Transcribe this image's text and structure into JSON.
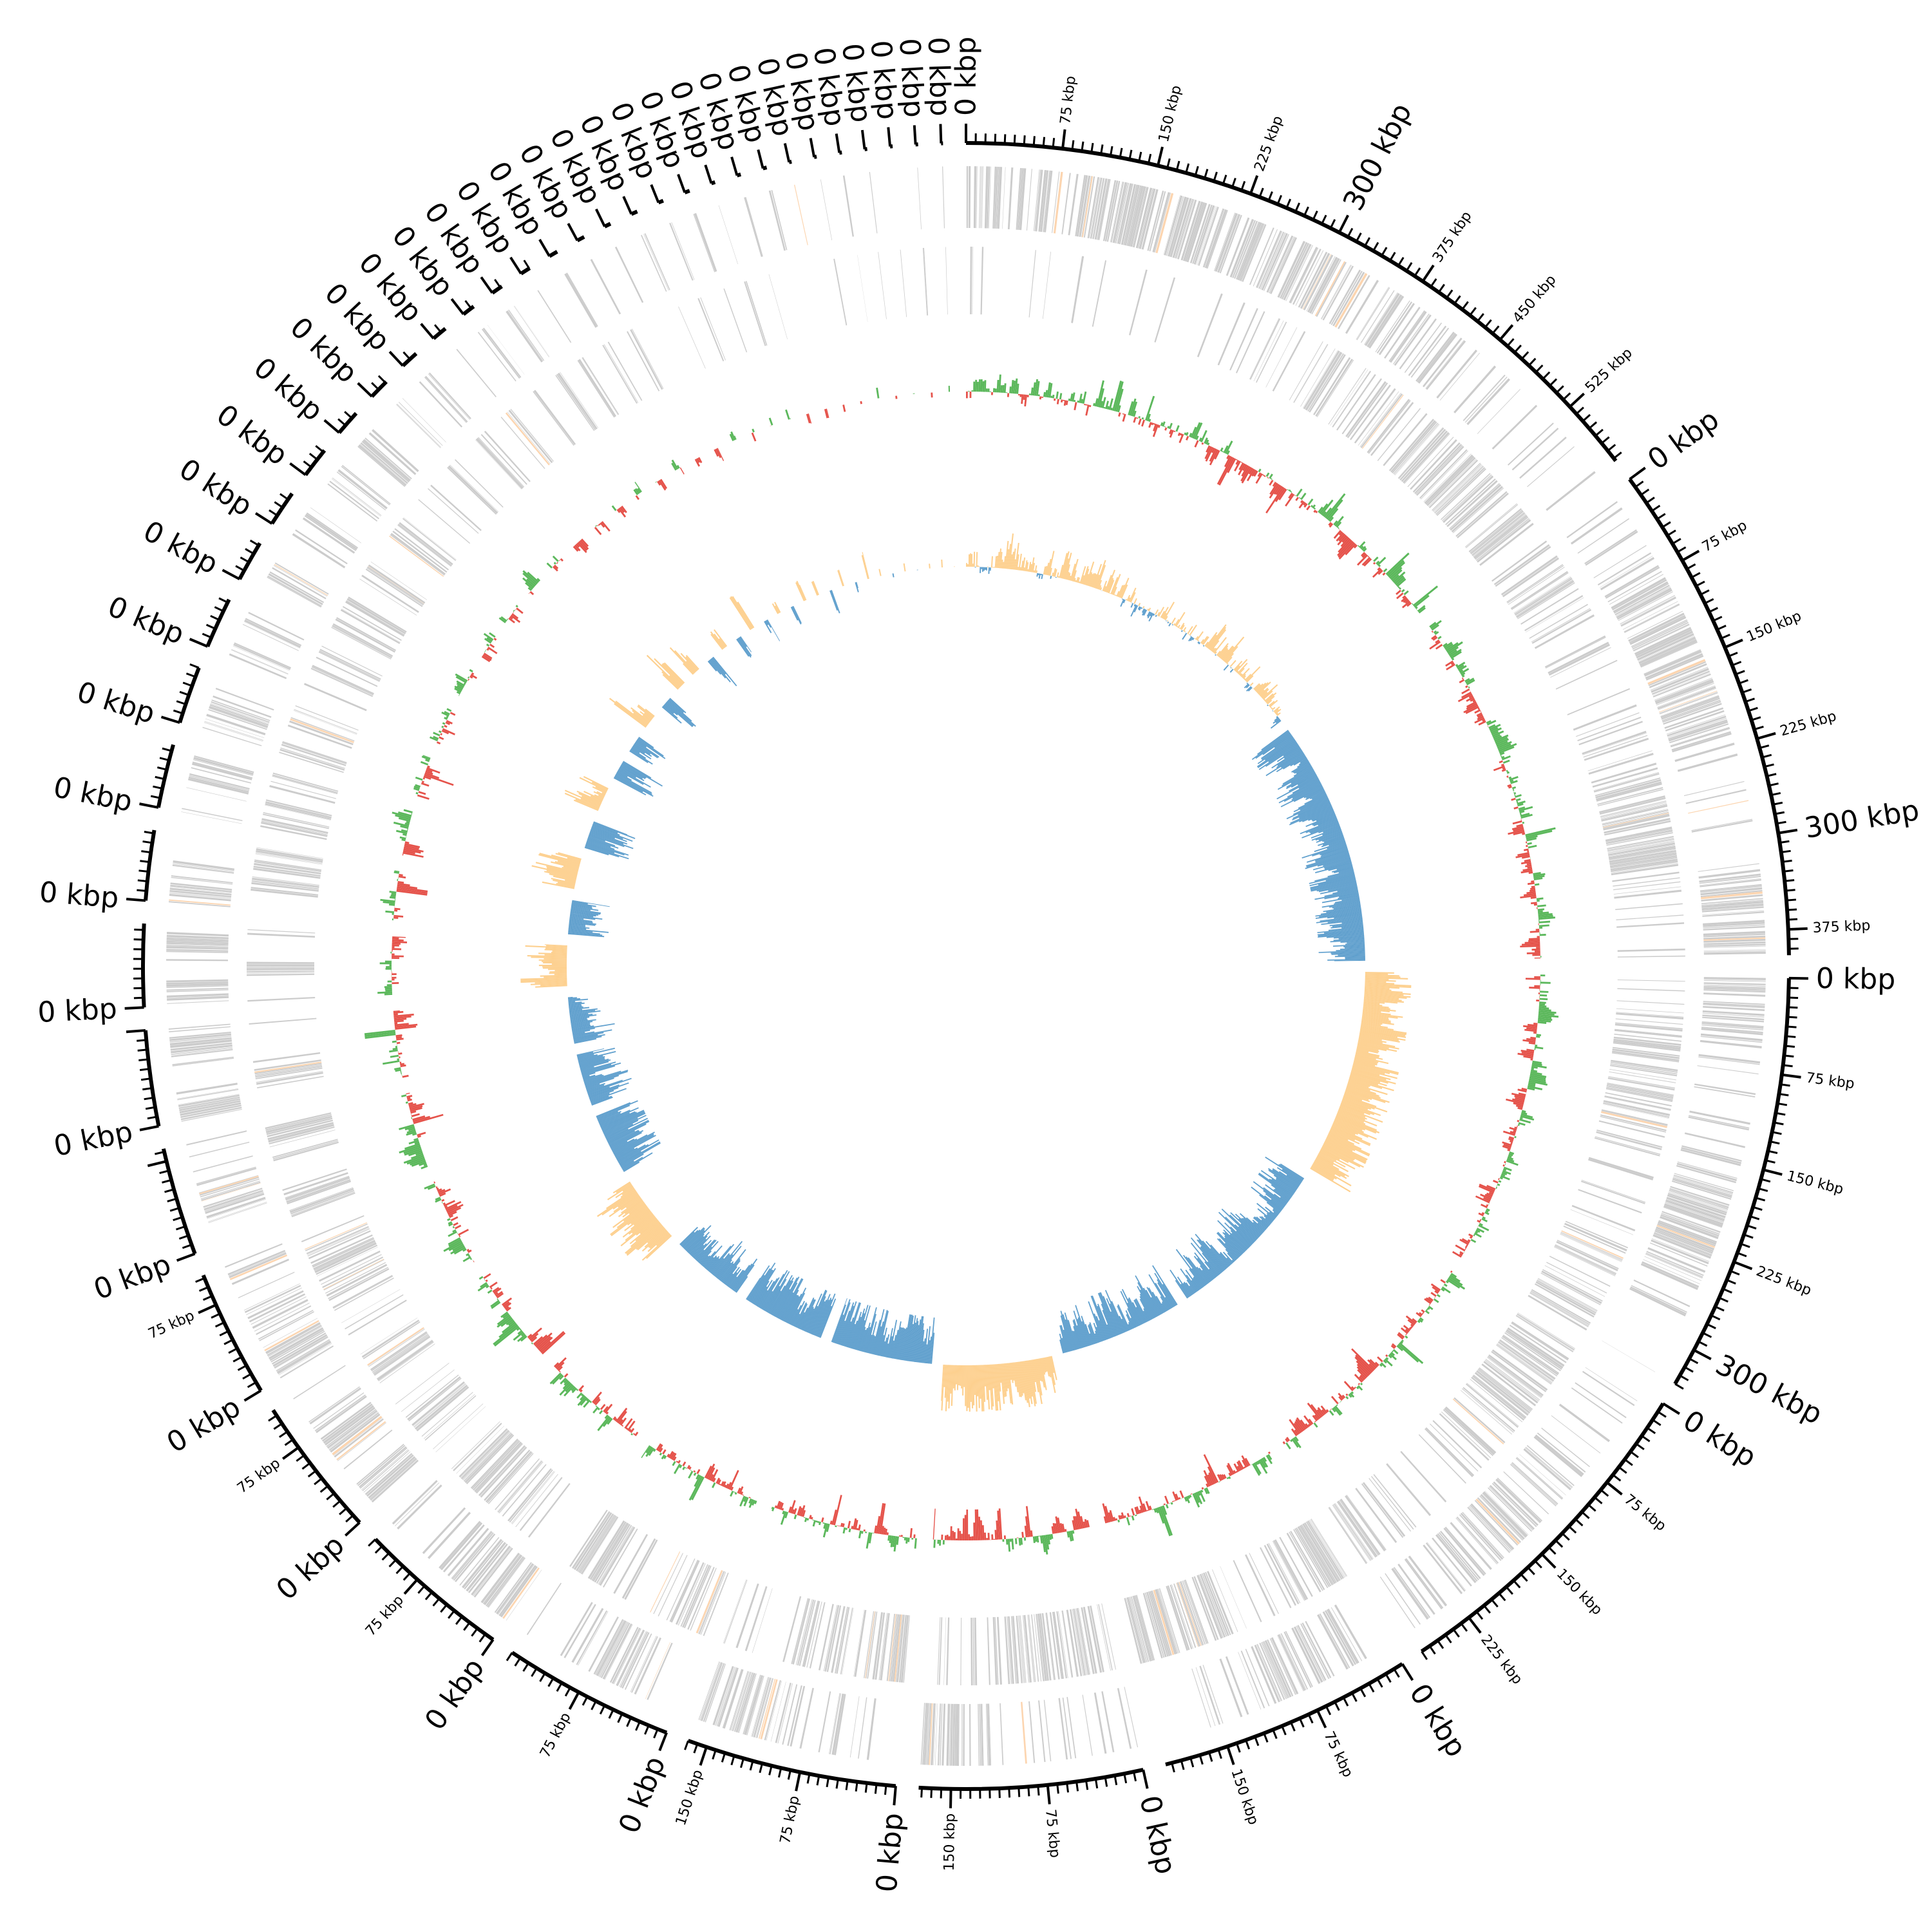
{
  "chart_data": {
    "type": "circos",
    "title": "",
    "unit": "kbp",
    "tracks": [
      {
        "id": "cds_forward",
        "color": "#cccccc",
        "accent_color": "#fcd5b0"
      },
      {
        "id": "cds_reverse",
        "color": "#cccccc",
        "accent_color": "#fcd5b0"
      },
      {
        "id": "gc_skew",
        "positive_color": "#5cb85c",
        "negative_color": "#e5534b"
      },
      {
        "id": "gc_content",
        "positive_color": "#fdd08f",
        "negative_color": "#5f9fcd"
      }
    ],
    "sectors": [
      {
        "size_kbp": 580,
        "gc_bias": 0.2,
        "tick_labels": [
          "0 kbp",
          "75 kbp",
          "150 kbp",
          "225 kbp",
          "300 kbp",
          "375 kbp",
          "450 kbp",
          "525 kbp"
        ]
      },
      {
        "size_kbp": 395,
        "gc_bias": -0.8,
        "tick_labels": [
          "0 kbp",
          "75 kbp",
          "150 kbp",
          "225 kbp",
          "300 kbp",
          "375 kbp"
        ]
      },
      {
        "size_kbp": 330,
        "gc_bias": 0.8,
        "tick_labels": [
          "0 kbp",
          "75 kbp",
          "150 kbp",
          "225 kbp",
          "300 kbp"
        ]
      },
      {
        "size_kbp": 270,
        "gc_bias": -0.6,
        "tick_labels": [
          "0 kbp",
          "75 kbp",
          "150 kbp",
          "225 kbp"
        ]
      },
      {
        "size_kbp": 200,
        "gc_bias": -0.7,
        "tick_labels": [
          "0 kbp",
          "75 kbp",
          "150 kbp"
        ]
      },
      {
        "size_kbp": 175,
        "gc_bias": 0.8,
        "tick_labels": [
          "0 kbp",
          "75 kbp",
          "150 kbp"
        ]
      },
      {
        "size_kbp": 165,
        "gc_bias": -0.8,
        "tick_labels": [
          "0 kbp",
          "75 kbp",
          "150 kbp"
        ]
      },
      {
        "size_kbp": 135,
        "gc_bias": -0.8,
        "tick_labels": [
          "0 kbp",
          "75 kbp"
        ]
      },
      {
        "size_kbp": 120,
        "gc_bias": -0.7,
        "tick_labels": [
          "0 kbp",
          "75 kbp"
        ]
      },
      {
        "size_kbp": 110,
        "gc_bias": 0.7,
        "tick_labels": [
          "0 kbp",
          "75 kbp"
        ]
      },
      {
        "size_kbp": 100,
        "gc_bias": -0.8,
        "tick_labels": [
          "0 kbp",
          "75 kbp"
        ]
      },
      {
        "size_kbp": 85,
        "gc_bias": -0.7,
        "tick_labels": [
          "0 kbp"
        ]
      },
      {
        "size_kbp": 75,
        "gc_bias": -0.6,
        "tick_labels": [
          "0 kbp"
        ]
      },
      {
        "size_kbp": 65,
        "gc_bias": 0.7,
        "tick_labels": [
          "0 kbp"
        ]
      },
      {
        "size_kbp": 55,
        "gc_bias": -0.8,
        "tick_labels": [
          "0 kbp"
        ]
      },
      {
        "size_kbp": 50,
        "gc_bias": 0.8,
        "tick_labels": [
          "0 kbp"
        ]
      },
      {
        "size_kbp": 45,
        "gc_bias": -0.7,
        "tick_labels": [
          "0 kbp"
        ]
      },
      {
        "size_kbp": 40,
        "gc_bias": 0.7,
        "tick_labels": [
          "0 kbp"
        ]
      },
      {
        "size_kbp": 32,
        "gc_bias": -0.7,
        "tick_labels": [
          "0 kbp"
        ]
      },
      {
        "size_kbp": 28,
        "gc_bias": -0.6,
        "tick_labels": [
          "0 kbp"
        ]
      },
      {
        "size_kbp": 24,
        "gc_bias": 0.7,
        "tick_labels": [
          "0 kbp"
        ]
      },
      {
        "size_kbp": 20,
        "gc_bias": -0.7,
        "tick_labels": [
          "0 kbp"
        ]
      },
      {
        "size_kbp": 16,
        "gc_bias": 0.7,
        "tick_labels": [
          "0 kbp"
        ]
      },
      {
        "size_kbp": 14,
        "gc_bias": 0.6,
        "tick_labels": [
          "0 kbp"
        ]
      },
      {
        "size_kbp": 12,
        "gc_bias": -0.6,
        "tick_labels": [
          "0 kbp"
        ]
      },
      {
        "size_kbp": 10,
        "gc_bias": 0.6,
        "tick_labels": [
          "0 kbp"
        ]
      },
      {
        "size_kbp": 9,
        "gc_bias": -0.6,
        "tick_labels": [
          "0 kbp"
        ]
      },
      {
        "size_kbp": 8,
        "gc_bias": 0.5,
        "tick_labels": [
          "0 kbp"
        ]
      },
      {
        "size_kbp": 7,
        "gc_bias": -0.5,
        "tick_labels": [
          "0 kbp"
        ]
      },
      {
        "size_kbp": 6,
        "gc_bias": 0.5,
        "tick_labels": [
          "0 kbp"
        ]
      },
      {
        "size_kbp": 5,
        "gc_bias": -0.5,
        "tick_labels": [
          "0 kbp"
        ]
      },
      {
        "size_kbp": 5,
        "gc_bias": 0.4,
        "tick_labels": [
          "0 kbp"
        ]
      },
      {
        "size_kbp": 4,
        "gc_bias": 0.4,
        "tick_labels": [
          "0 kbp"
        ]
      },
      {
        "size_kbp": 4,
        "gc_bias": -0.4,
        "tick_labels": [
          "0 kbp"
        ]
      },
      {
        "size_kbp": 3,
        "gc_bias": 0.3,
        "tick_labels": [
          "0 kbp"
        ]
      },
      {
        "size_kbp": 3,
        "gc_bias": -0.3,
        "tick_labels": [
          "0 kbp"
        ]
      },
      {
        "size_kbp": 3,
        "gc_bias": 0.3,
        "tick_labels": [
          "0 kbp"
        ]
      },
      {
        "size_kbp": 2,
        "gc_bias": 0.2,
        "tick_labels": [
          "0 kbp"
        ]
      },
      {
        "size_kbp": 2,
        "gc_bias": -0.2,
        "tick_labels": [
          "0 kbp"
        ]
      },
      {
        "size_kbp": 2,
        "gc_bias": 0.2,
        "tick_labels": [
          "0 kbp"
        ]
      },
      {
        "size_kbp": 2,
        "gc_bias": -0.2,
        "tick_labels": [
          "0 kbp"
        ]
      },
      {
        "size_kbp": 2,
        "gc_bias": 0.2,
        "tick_labels": [
          "0 kbp"
        ]
      },
      {
        "size_kbp": 2,
        "gc_bias": 0.2,
        "tick_labels": [
          "0 kbp"
        ]
      },
      {
        "size_kbp": 1.5,
        "gc_bias": -0.2,
        "tick_labels": [
          "0 kbp"
        ]
      }
    ],
    "minor_tick_interval_kbp": 7.5,
    "major_tick_interval_kbp": 75,
    "large_label_interval_kbp": 300
  }
}
